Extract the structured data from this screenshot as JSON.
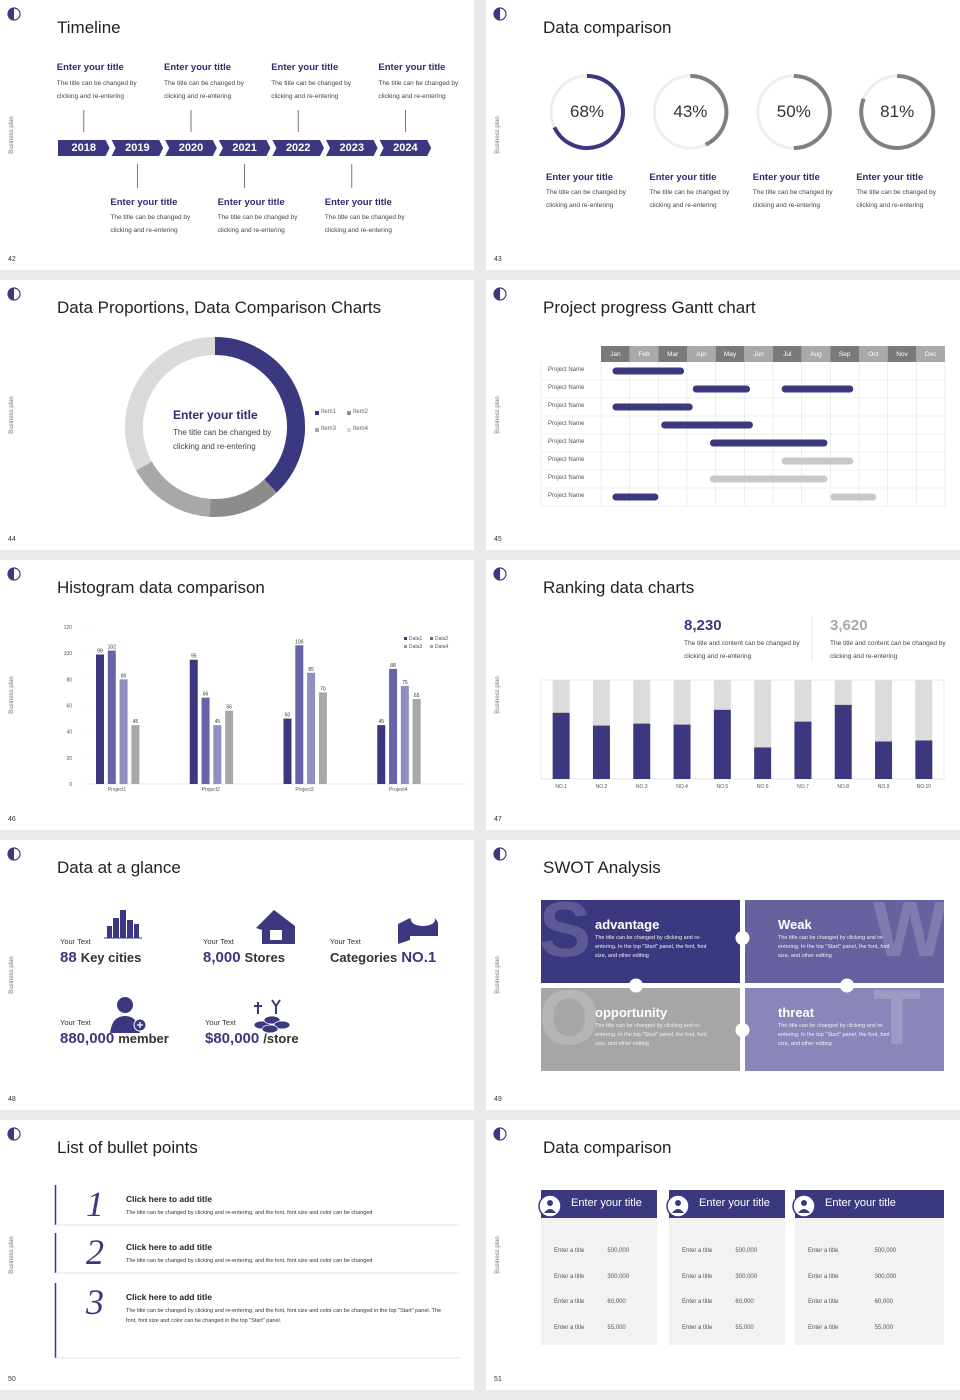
{
  "side_label": "Business plan",
  "slides": [
    {
      "page": 42,
      "title": "Timeline",
      "type": "timeline",
      "years": [
        2018,
        2019,
        2020,
        2021,
        2022,
        2023,
        2024
      ],
      "entries": [
        {
          "title": "Enter your title",
          "text": "The title can be changed by clicking and re-entering"
        },
        {
          "title": "Enter your title",
          "text": "The title can be changed by clicking and re-entering"
        },
        {
          "title": "Enter your title",
          "text": "The title can be changed by clicking and re-entering"
        },
        {
          "title": "Enter your title",
          "text": "The title can be changed by clicking and re-entering"
        },
        {
          "title": "Enter your title",
          "text": "The title can be changed by clicking and re-entering"
        },
        {
          "title": "Enter your title",
          "text": "The title can be changed by clicking and re-entering"
        },
        {
          "title": "Enter your title",
          "text": "The title can be changed by clicking and re-entering"
        }
      ]
    },
    {
      "page": 43,
      "title": "Data comparison",
      "chart_data": {
        "type": "ring",
        "values": [
          68,
          43,
          50,
          81
        ],
        "value_labels": [
          "68%",
          "43%",
          "50%",
          "81%"
        ],
        "colors": [
          "#3b3880",
          "#808080",
          "#808080",
          "#808080"
        ],
        "ylim": [
          0,
          100
        ]
      },
      "entries": [
        {
          "title": "Enter your title",
          "text": "The title can be changed by clicking and re-entering"
        },
        {
          "title": "Enter your title",
          "text": "The title can be changed by clicking and re-entering"
        },
        {
          "title": "Enter your title",
          "text": "The title can be changed by clicking and re-entering"
        },
        {
          "title": "Enter your title",
          "text": "The title can be changed by clicking and re-entering"
        }
      ]
    },
    {
      "page": 44,
      "title": "Data Proportions, Data Comparison Charts",
      "chart_data": {
        "type": "donut",
        "categories": [
          "Item1",
          "Item2",
          "Item3",
          "Item4"
        ],
        "values": [
          38,
          13,
          16,
          33
        ],
        "colors": [
          "#3b3880",
          "#8c8c8c",
          "#a8a8a8",
          "#dadada"
        ],
        "center_title": "Enter your title",
        "center_text": "The title can be changed by clicking and re-entering"
      }
    },
    {
      "page": 45,
      "title": "Project progress Gantt chart",
      "chart_data": {
        "type": "gantt",
        "months": [
          "Jan",
          "Feb",
          "Mar",
          "Apr",
          "May",
          "Jun",
          "Jul",
          "Aug",
          "Sep",
          "Oct",
          "Nov",
          "Dec"
        ],
        "xlim": [
          0,
          12
        ],
        "rows": [
          {
            "name": "Project Name",
            "bars": [
              {
                "start": 0.4,
                "end": 2.9,
                "color": "#3b3880"
              }
            ]
          },
          {
            "name": "Project Name",
            "bars": [
              {
                "start": 3.2,
                "end": 5.2,
                "color": "#3b3880"
              },
              {
                "start": 6.3,
                "end": 8.8,
                "color": "#3b3880"
              }
            ]
          },
          {
            "name": "Project Name",
            "bars": [
              {
                "start": 0.4,
                "end": 3.2,
                "color": "#3b3880"
              }
            ]
          },
          {
            "name": "Project Name",
            "bars": [
              {
                "start": 2.1,
                "end": 5.3,
                "color": "#3b3880"
              }
            ]
          },
          {
            "name": "Project Name",
            "bars": [
              {
                "start": 3.8,
                "end": 7.9,
                "color": "#3b3880"
              }
            ]
          },
          {
            "name": "Project Name",
            "bars": [
              {
                "start": 6.3,
                "end": 8.8,
                "color": "#c8c8c8"
              }
            ]
          },
          {
            "name": "Project Name",
            "bars": [
              {
                "start": 3.8,
                "end": 7.9,
                "color": "#c8c8c8"
              }
            ]
          },
          {
            "name": "Project Name",
            "bars": [
              {
                "start": 0.4,
                "end": 2.0,
                "color": "#3b3880"
              },
              {
                "start": 8.0,
                "end": 9.6,
                "color": "#c8c8c8"
              }
            ]
          }
        ]
      }
    },
    {
      "page": 46,
      "title": "Histogram data comparison",
      "chart_data": {
        "type": "bar",
        "categories": [
          "Project1",
          "Project2",
          "Project3",
          "Project4"
        ],
        "series": [
          {
            "name": "Data1",
            "color": "#3b3880",
            "values": [
              99,
              95,
              50,
              45
            ]
          },
          {
            "name": "Data2",
            "color": "#6664a6",
            "values": [
              102,
              66,
              106,
              88
            ]
          },
          {
            "name": "Data3",
            "color": "#908ec2",
            "values": [
              80,
              45,
              85,
              75
            ]
          },
          {
            "name": "Data4",
            "color": "#a8a8a8",
            "values": [
              45,
              56,
              70,
              65
            ]
          }
        ],
        "ylim": [
          0,
          120
        ],
        "yticks": [
          0,
          20,
          40,
          60,
          80,
          100,
          120
        ]
      }
    },
    {
      "page": 47,
      "title": "Ranking data charts",
      "highlights": [
        {
          "value": "8,230",
          "color": "#3b3880",
          "text": "The title and content can be changed by clicking and re-entering"
        },
        {
          "value": "3,620",
          "color": "#a8a8a8",
          "text": "The title and content can be changed by clicking and re-entering"
        }
      ],
      "chart_data": {
        "type": "stacked_bar",
        "categories": [
          "NO.1",
          "NO.2",
          "NO.3",
          "NO.4",
          "NO.5",
          "NO.6",
          "NO.7",
          "NO.8",
          "NO.9",
          "NO.10"
        ],
        "series": [
          {
            "color": "#3b3880",
            "values": [
              67,
              54,
              56,
              55,
              70,
              32,
              58,
              75,
              38,
              39
            ]
          },
          {
            "color": "#dcdcdc",
            "values": [
              33,
              46,
              44,
              45,
              30,
              68,
              42,
              25,
              62,
              61
            ]
          }
        ],
        "ylim": [
          0,
          100
        ]
      }
    },
    {
      "page": 48,
      "title": "Data at a glance",
      "type": "stats",
      "items": [
        {
          "label": "Your Text",
          "value": "88",
          "unit": "Key cities"
        },
        {
          "label": "Your Text",
          "value": "8,000",
          "unit": "Stores"
        },
        {
          "label": "Your Text",
          "prefix": "Categories",
          "value": "NO.1"
        },
        {
          "label": "Your Text",
          "value": "880,000",
          "unit": "member"
        },
        {
          "label": "Your Text",
          "value": "$80,000",
          "unit": "/store"
        }
      ]
    },
    {
      "page": 49,
      "title": "SWOT Analysis",
      "type": "swot",
      "quadrants": [
        {
          "letter": "S",
          "title": "advantage",
          "color": "#3b3880",
          "text": "The title can be changed by clicking and re-entering. In the top \"Start\" panel, the font, font size, and other editing"
        },
        {
          "letter": "W",
          "title": "Weak",
          "color": "#65629f",
          "text": "The title can be changed by clicking and re-entering. In the top \"Start\" panel, the font, font size, and other editing"
        },
        {
          "letter": "O",
          "title": "opportunity",
          "color": "#a6a6a6",
          "text": "The title can be changed by clicking and re-entering. In the top \"Start\" panel, the font, font size, and other editing"
        },
        {
          "letter": "T",
          "title": "threat",
          "color": "#8987ba",
          "text": "The title can be changed by clicking and re-entering. In the top \"Start\" panel, the font, font size, and other editing"
        }
      ]
    },
    {
      "page": 50,
      "title": "List of bullet points",
      "type": "list",
      "items": [
        {
          "number": "1",
          "title": "Click here to add title",
          "text": "The title can be changed by clicking and re-entering, and the font, font size and color can be changed"
        },
        {
          "number": "2",
          "title": "Click here to add title",
          "text": "The title can be changed by clicking and re-entering, and the font, font size and color can be changed"
        },
        {
          "number": "3",
          "title": "Click here to add title",
          "text": "The title can be changed by clicking and re-entering, and the font, font size and color can be changed in the top \"Start\" panel. The font, font size and color can be changed in the top \"Start\" panel."
        }
      ]
    },
    {
      "page": 51,
      "title": "Data comparison",
      "type": "tables",
      "cards": [
        {
          "title": "Enter your title",
          "rows": [
            [
              "Enter a title",
              "500,000"
            ],
            [
              "Enter a title",
              "300,000"
            ],
            [
              "Enter a title",
              "60,000"
            ],
            [
              "Enter a title",
              "55,000"
            ]
          ]
        },
        {
          "title": "Enter your title",
          "rows": [
            [
              "Enter a title",
              "500,000"
            ],
            [
              "Enter a title",
              "300,000"
            ],
            [
              "Enter a title",
              "60,000"
            ],
            [
              "Enter a title",
              "55,000"
            ]
          ]
        },
        {
          "title": "Enter your title",
          "rows": [
            [
              "Enter a title",
              "500,000"
            ],
            [
              "Enter a title",
              "300,000"
            ],
            [
              "Enter a title",
              "60,000"
            ],
            [
              "Enter a title",
              "55,000"
            ]
          ]
        }
      ]
    }
  ]
}
